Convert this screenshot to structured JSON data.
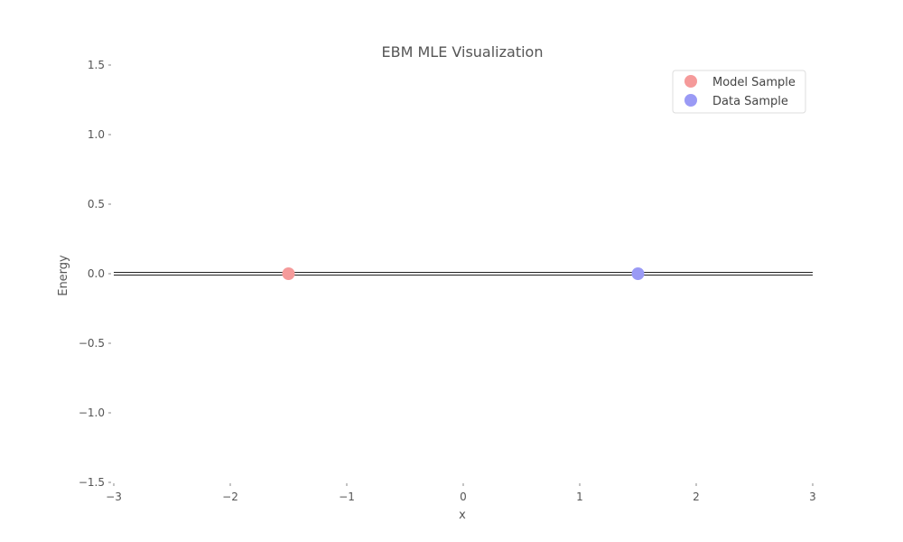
{
  "chart_data": {
    "type": "scatter",
    "title": "EBM MLE Visualization",
    "xlabel": "x",
    "ylabel": "Energy",
    "xlim": [
      -3,
      3
    ],
    "ylim": [
      -1.5,
      1.5
    ],
    "x_ticks": [
      -3,
      -2,
      -1,
      0,
      1,
      2,
      3
    ],
    "x_tick_labels": [
      "−3",
      "−2",
      "−1",
      "0",
      "1",
      "2",
      "3"
    ],
    "y_ticks": [
      1.5,
      1.0,
      0.5,
      0.0,
      -0.5,
      -1.0,
      -1.5
    ],
    "y_tick_labels": [
      "1.5",
      "1.0",
      "0.5",
      "0.0",
      "−0.5",
      "−1.0",
      "−1.5"
    ],
    "grid": false,
    "legend_position": "top-right",
    "energy_line": {
      "x": [
        -3,
        3
      ],
      "y": [
        0,
        0
      ],
      "color": "#222222"
    },
    "series": [
      {
        "name": "Model Sample",
        "x": [
          -1.5
        ],
        "y": [
          0
        ],
        "color": "#f59a9a"
      },
      {
        "name": "Data Sample",
        "x": [
          1.5
        ],
        "y": [
          0
        ],
        "color": "#9a9af5"
      }
    ]
  }
}
